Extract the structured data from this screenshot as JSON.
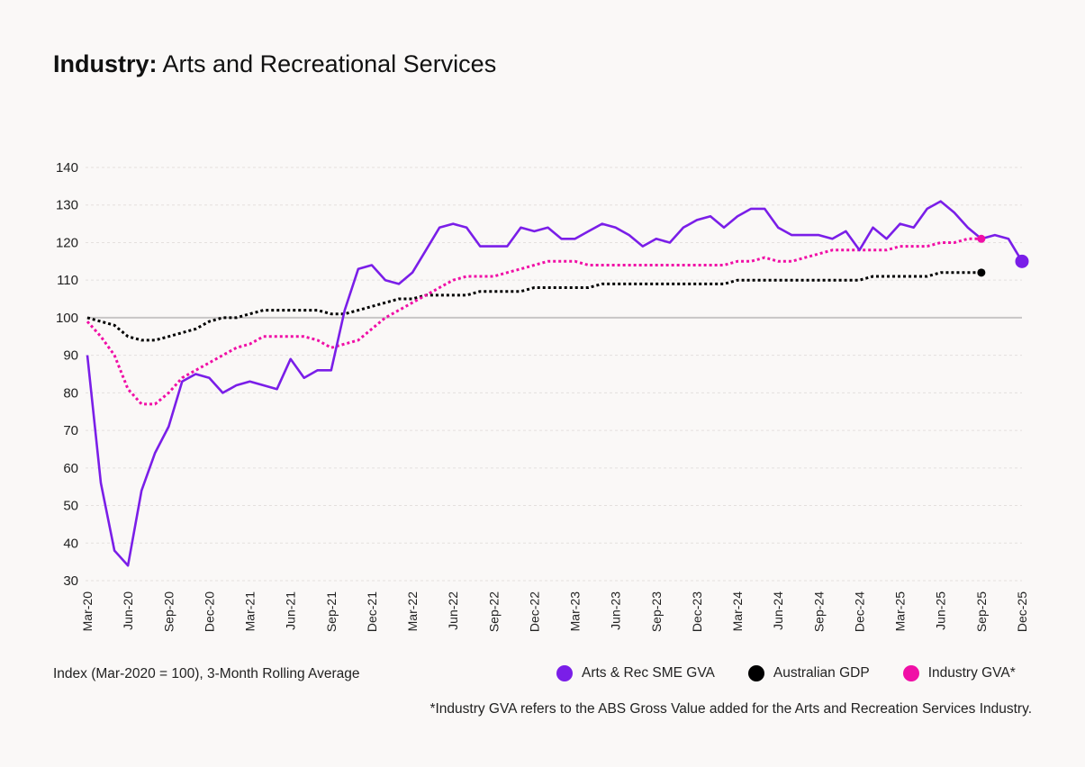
{
  "title": {
    "bold": "Industry:",
    "rest": " Arts and Recreational Services"
  },
  "subtitle": "Index (Mar-2020 = 100), 3-Month Rolling Average",
  "footnote": "*Industry GVA refers to the ABS Gross Value added for the Arts and Recreation Services Industry.",
  "legend": [
    {
      "label": "Arts & Rec SME GVA",
      "color": "#7a1ee8"
    },
    {
      "label": "Australian GDP",
      "color": "#000000"
    },
    {
      "label": "Industry GVA*",
      "color": "#f00fa6"
    }
  ],
  "chart_data": {
    "type": "line",
    "ylim": [
      30,
      140
    ],
    "yticks": [
      30,
      40,
      50,
      60,
      70,
      80,
      90,
      100,
      110,
      120,
      130,
      140
    ],
    "x_range": [
      "Mar-20",
      "Dec-25"
    ],
    "x_tick_labels": [
      "Mar-20",
      "Jun-20",
      "Sep-20",
      "Dec-20",
      "Mar-21",
      "Jun-21",
      "Sep-21",
      "Dec-21",
      "Mar-22",
      "Jun-22",
      "Sep-22",
      "Dec-22",
      "Mar-23",
      "Jun-23",
      "Sep-23",
      "Dec-23",
      "Mar-24",
      "Jun-24",
      "Sep-24",
      "Dec-24",
      "Mar-25",
      "Jun-25",
      "Sep-25",
      "Dec-25"
    ],
    "reference_line": 100,
    "grid": "horizontal dotted",
    "series": [
      {
        "name": "Arts & Rec SME GVA",
        "color": "#7a1ee8",
        "style": "solid",
        "end_marker": true,
        "values": [
          90,
          56,
          38,
          34,
          54,
          64,
          71,
          83,
          85,
          84,
          80,
          82,
          83,
          82,
          81,
          89,
          84,
          86,
          86,
          102,
          113,
          114,
          110,
          109,
          112,
          118,
          124,
          125,
          124,
          119,
          119,
          119,
          124,
          123,
          124,
          121,
          121,
          123,
          125,
          124,
          122,
          119,
          121,
          120,
          124,
          126,
          127,
          124,
          127,
          129,
          129,
          124,
          122,
          122,
          122,
          121,
          123,
          118,
          124,
          121,
          125,
          124,
          129,
          131,
          128,
          124,
          121,
          122,
          121,
          115
        ]
      },
      {
        "name": "Australian GDP",
        "color": "#000000",
        "style": "dotted",
        "end_marker": true,
        "values": [
          100,
          99,
          98,
          95,
          94,
          94,
          95,
          96,
          97,
          99,
          100,
          100,
          101,
          102,
          102,
          102,
          102,
          102,
          101,
          101,
          102,
          103,
          104,
          105,
          105,
          106,
          106,
          106,
          106,
          107,
          107,
          107,
          107,
          108,
          108,
          108,
          108,
          108,
          109,
          109,
          109,
          109,
          109,
          109,
          109,
          109,
          109,
          109,
          110,
          110,
          110,
          110,
          110,
          110,
          110,
          110,
          110,
          110,
          111,
          111,
          111,
          111,
          111,
          112,
          112,
          112,
          112
        ]
      },
      {
        "name": "Industry GVA*",
        "color": "#f00fa6",
        "style": "dotted",
        "end_marker": true,
        "values": [
          99,
          95,
          90,
          81,
          77,
          77,
          80,
          84,
          86,
          88,
          90,
          92,
          93,
          95,
          95,
          95,
          95,
          94,
          92,
          93,
          94,
          97,
          100,
          102,
          104,
          106,
          108,
          110,
          111,
          111,
          111,
          112,
          113,
          114,
          115,
          115,
          115,
          114,
          114,
          114,
          114,
          114,
          114,
          114,
          114,
          114,
          114,
          114,
          115,
          115,
          116,
          115,
          115,
          116,
          117,
          118,
          118,
          118,
          118,
          118,
          119,
          119,
          119,
          120,
          120,
          121,
          121
        ]
      }
    ]
  }
}
